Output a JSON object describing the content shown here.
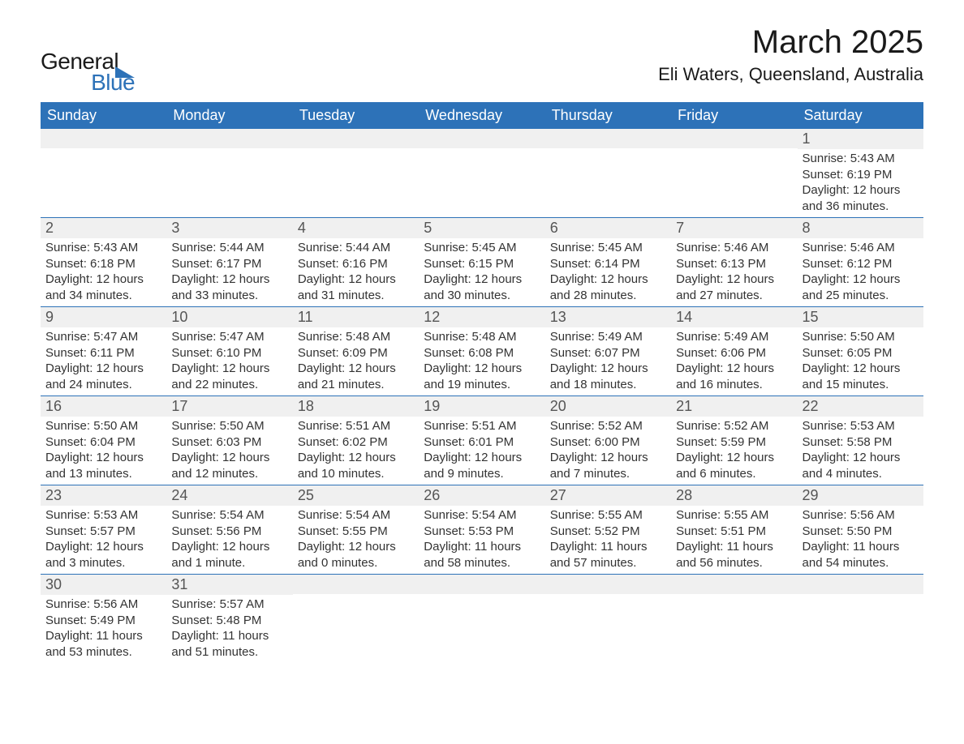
{
  "logo": {
    "text1": "General",
    "text2": "Blue",
    "color_black": "#1a1a1a",
    "color_blue": "#2d72b8"
  },
  "title": "March 2025",
  "location": "Eli Waters, Queensland, Australia",
  "day_headers": [
    "Sunday",
    "Monday",
    "Tuesday",
    "Wednesday",
    "Thursday",
    "Friday",
    "Saturday"
  ],
  "colors": {
    "header_bg": "#2d72b8",
    "header_text": "#ffffff",
    "day_number_bg": "#f0f0f0",
    "day_number_text": "#555555",
    "body_text": "#333333",
    "border": "#2d72b8"
  },
  "weeks": [
    [
      {
        "empty": true
      },
      {
        "empty": true
      },
      {
        "empty": true
      },
      {
        "empty": true
      },
      {
        "empty": true
      },
      {
        "empty": true
      },
      {
        "day": "1",
        "sunrise": "Sunrise: 5:43 AM",
        "sunset": "Sunset: 6:19 PM",
        "daylight1": "Daylight: 12 hours",
        "daylight2": "and 36 minutes."
      }
    ],
    [
      {
        "day": "2",
        "sunrise": "Sunrise: 5:43 AM",
        "sunset": "Sunset: 6:18 PM",
        "daylight1": "Daylight: 12 hours",
        "daylight2": "and 34 minutes."
      },
      {
        "day": "3",
        "sunrise": "Sunrise: 5:44 AM",
        "sunset": "Sunset: 6:17 PM",
        "daylight1": "Daylight: 12 hours",
        "daylight2": "and 33 minutes."
      },
      {
        "day": "4",
        "sunrise": "Sunrise: 5:44 AM",
        "sunset": "Sunset: 6:16 PM",
        "daylight1": "Daylight: 12 hours",
        "daylight2": "and 31 minutes."
      },
      {
        "day": "5",
        "sunrise": "Sunrise: 5:45 AM",
        "sunset": "Sunset: 6:15 PM",
        "daylight1": "Daylight: 12 hours",
        "daylight2": "and 30 minutes."
      },
      {
        "day": "6",
        "sunrise": "Sunrise: 5:45 AM",
        "sunset": "Sunset: 6:14 PM",
        "daylight1": "Daylight: 12 hours",
        "daylight2": "and 28 minutes."
      },
      {
        "day": "7",
        "sunrise": "Sunrise: 5:46 AM",
        "sunset": "Sunset: 6:13 PM",
        "daylight1": "Daylight: 12 hours",
        "daylight2": "and 27 minutes."
      },
      {
        "day": "8",
        "sunrise": "Sunrise: 5:46 AM",
        "sunset": "Sunset: 6:12 PM",
        "daylight1": "Daylight: 12 hours",
        "daylight2": "and 25 minutes."
      }
    ],
    [
      {
        "day": "9",
        "sunrise": "Sunrise: 5:47 AM",
        "sunset": "Sunset: 6:11 PM",
        "daylight1": "Daylight: 12 hours",
        "daylight2": "and 24 minutes."
      },
      {
        "day": "10",
        "sunrise": "Sunrise: 5:47 AM",
        "sunset": "Sunset: 6:10 PM",
        "daylight1": "Daylight: 12 hours",
        "daylight2": "and 22 minutes."
      },
      {
        "day": "11",
        "sunrise": "Sunrise: 5:48 AM",
        "sunset": "Sunset: 6:09 PM",
        "daylight1": "Daylight: 12 hours",
        "daylight2": "and 21 minutes."
      },
      {
        "day": "12",
        "sunrise": "Sunrise: 5:48 AM",
        "sunset": "Sunset: 6:08 PM",
        "daylight1": "Daylight: 12 hours",
        "daylight2": "and 19 minutes."
      },
      {
        "day": "13",
        "sunrise": "Sunrise: 5:49 AM",
        "sunset": "Sunset: 6:07 PM",
        "daylight1": "Daylight: 12 hours",
        "daylight2": "and 18 minutes."
      },
      {
        "day": "14",
        "sunrise": "Sunrise: 5:49 AM",
        "sunset": "Sunset: 6:06 PM",
        "daylight1": "Daylight: 12 hours",
        "daylight2": "and 16 minutes."
      },
      {
        "day": "15",
        "sunrise": "Sunrise: 5:50 AM",
        "sunset": "Sunset: 6:05 PM",
        "daylight1": "Daylight: 12 hours",
        "daylight2": "and 15 minutes."
      }
    ],
    [
      {
        "day": "16",
        "sunrise": "Sunrise: 5:50 AM",
        "sunset": "Sunset: 6:04 PM",
        "daylight1": "Daylight: 12 hours",
        "daylight2": "and 13 minutes."
      },
      {
        "day": "17",
        "sunrise": "Sunrise: 5:50 AM",
        "sunset": "Sunset: 6:03 PM",
        "daylight1": "Daylight: 12 hours",
        "daylight2": "and 12 minutes."
      },
      {
        "day": "18",
        "sunrise": "Sunrise: 5:51 AM",
        "sunset": "Sunset: 6:02 PM",
        "daylight1": "Daylight: 12 hours",
        "daylight2": "and 10 minutes."
      },
      {
        "day": "19",
        "sunrise": "Sunrise: 5:51 AM",
        "sunset": "Sunset: 6:01 PM",
        "daylight1": "Daylight: 12 hours",
        "daylight2": "and 9 minutes."
      },
      {
        "day": "20",
        "sunrise": "Sunrise: 5:52 AM",
        "sunset": "Sunset: 6:00 PM",
        "daylight1": "Daylight: 12 hours",
        "daylight2": "and 7 minutes."
      },
      {
        "day": "21",
        "sunrise": "Sunrise: 5:52 AM",
        "sunset": "Sunset: 5:59 PM",
        "daylight1": "Daylight: 12 hours",
        "daylight2": "and 6 minutes."
      },
      {
        "day": "22",
        "sunrise": "Sunrise: 5:53 AM",
        "sunset": "Sunset: 5:58 PM",
        "daylight1": "Daylight: 12 hours",
        "daylight2": "and 4 minutes."
      }
    ],
    [
      {
        "day": "23",
        "sunrise": "Sunrise: 5:53 AM",
        "sunset": "Sunset: 5:57 PM",
        "daylight1": "Daylight: 12 hours",
        "daylight2": "and 3 minutes."
      },
      {
        "day": "24",
        "sunrise": "Sunrise: 5:54 AM",
        "sunset": "Sunset: 5:56 PM",
        "daylight1": "Daylight: 12 hours",
        "daylight2": "and 1 minute."
      },
      {
        "day": "25",
        "sunrise": "Sunrise: 5:54 AM",
        "sunset": "Sunset: 5:55 PM",
        "daylight1": "Daylight: 12 hours",
        "daylight2": "and 0 minutes."
      },
      {
        "day": "26",
        "sunrise": "Sunrise: 5:54 AM",
        "sunset": "Sunset: 5:53 PM",
        "daylight1": "Daylight: 11 hours",
        "daylight2": "and 58 minutes."
      },
      {
        "day": "27",
        "sunrise": "Sunrise: 5:55 AM",
        "sunset": "Sunset: 5:52 PM",
        "daylight1": "Daylight: 11 hours",
        "daylight2": "and 57 minutes."
      },
      {
        "day": "28",
        "sunrise": "Sunrise: 5:55 AM",
        "sunset": "Sunset: 5:51 PM",
        "daylight1": "Daylight: 11 hours",
        "daylight2": "and 56 minutes."
      },
      {
        "day": "29",
        "sunrise": "Sunrise: 5:56 AM",
        "sunset": "Sunset: 5:50 PM",
        "daylight1": "Daylight: 11 hours",
        "daylight2": "and 54 minutes."
      }
    ],
    [
      {
        "day": "30",
        "sunrise": "Sunrise: 5:56 AM",
        "sunset": "Sunset: 5:49 PM",
        "daylight1": "Daylight: 11 hours",
        "daylight2": "and 53 minutes."
      },
      {
        "day": "31",
        "sunrise": "Sunrise: 5:57 AM",
        "sunset": "Sunset: 5:48 PM",
        "daylight1": "Daylight: 11 hours",
        "daylight2": "and 51 minutes."
      },
      {
        "empty": true
      },
      {
        "empty": true
      },
      {
        "empty": true
      },
      {
        "empty": true
      },
      {
        "empty": true
      }
    ]
  ]
}
